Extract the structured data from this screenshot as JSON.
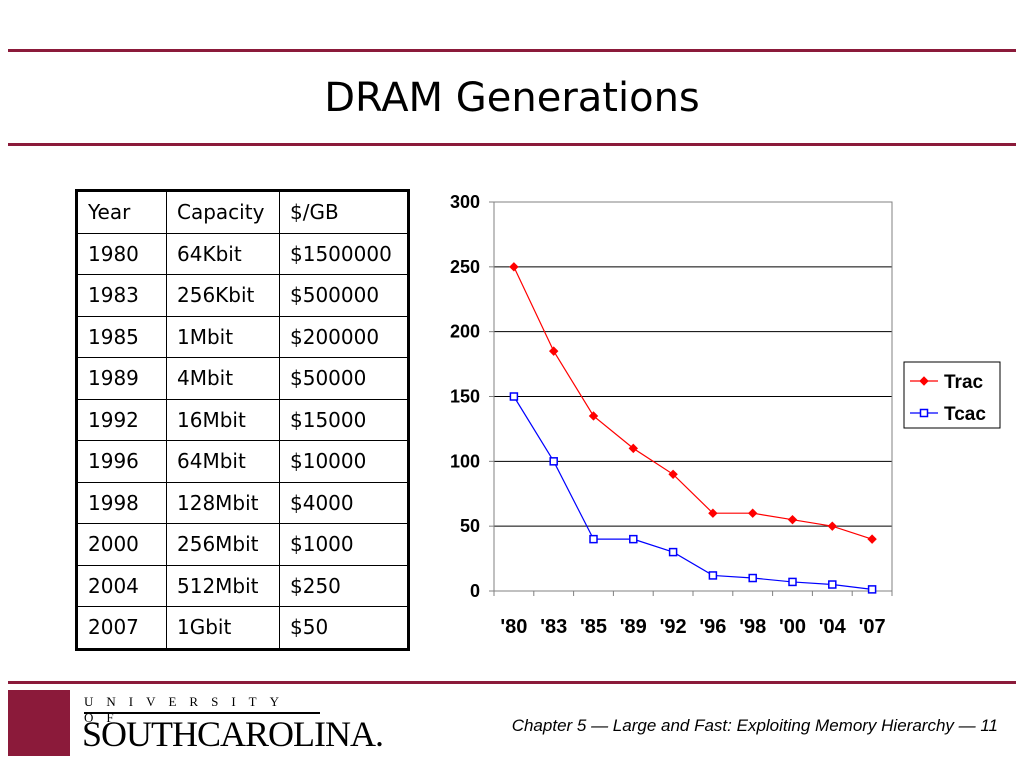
{
  "slide": {
    "title": "DRAM Generations",
    "footer": "Chapter 5 — Large and Fast: Exploiting Memory Hierarchy — 11"
  },
  "logo": {
    "line1": "UNIVERSITY OF",
    "line2": "SOUTHCAROLINA.",
    "color": "#8b1a3a"
  },
  "table": {
    "headers": [
      "Year",
      "Capacity",
      "$/GB"
    ],
    "rows": [
      [
        "1980",
        "64Kbit",
        "$1500000"
      ],
      [
        "1983",
        "256Kbit",
        "$500000"
      ],
      [
        "1985",
        "1Mbit",
        "$200000"
      ],
      [
        "1989",
        "4Mbit",
        "$50000"
      ],
      [
        "1992",
        "16Mbit",
        "$15000"
      ],
      [
        "1996",
        "64Mbit",
        "$10000"
      ],
      [
        "1998",
        "128Mbit",
        "$4000"
      ],
      [
        "2000",
        "256Mbit",
        "$1000"
      ],
      [
        "2004",
        "512Mbit",
        "$250"
      ],
      [
        "2007",
        "1Gbit",
        "$50"
      ]
    ]
  },
  "chart_data": {
    "type": "line",
    "title": "",
    "xlabel": "",
    "ylabel": "",
    "categories": [
      "'80",
      "'83",
      "'85",
      "'89",
      "'92",
      "'96",
      "'98",
      "'00",
      "'04",
      "'07"
    ],
    "ylim": [
      0,
      300
    ],
    "yticks": [
      0,
      50,
      100,
      150,
      200,
      250,
      300
    ],
    "grid": true,
    "legend": "right",
    "series": [
      {
        "name": "Trac",
        "color": "#ff0000",
        "marker": "diamond",
        "values": [
          250,
          185,
          135,
          110,
          90,
          60,
          60,
          55,
          50,
          40
        ]
      },
      {
        "name": "Tcac",
        "color": "#0000ff",
        "marker": "square",
        "values": [
          150,
          100,
          40,
          40,
          30,
          12,
          10,
          7,
          5,
          1.25
        ]
      }
    ]
  }
}
